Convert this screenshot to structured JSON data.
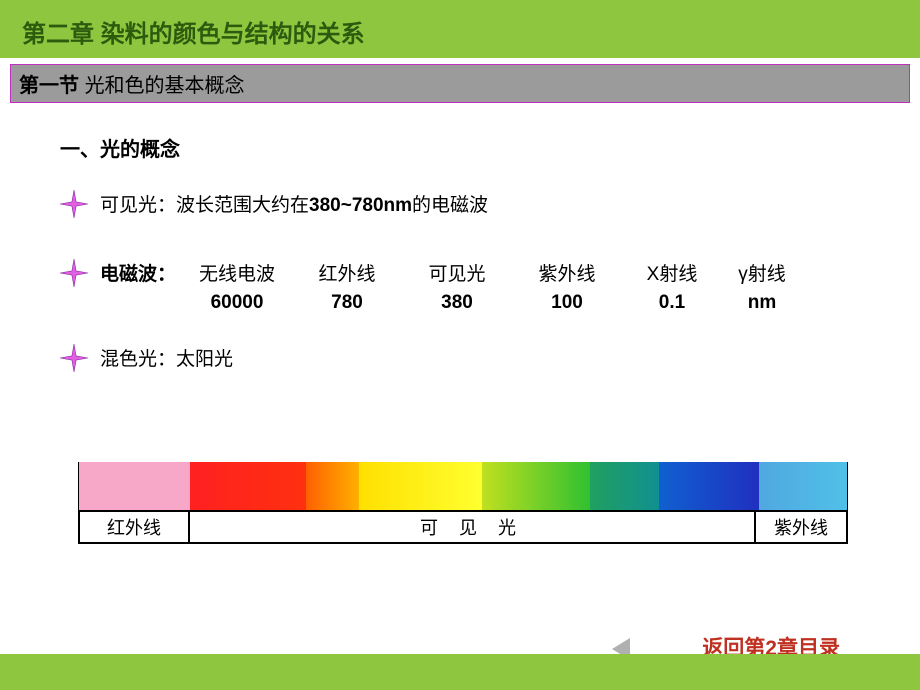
{
  "chapter_title": "第二章  染料的颜色与结构的关系",
  "section": {
    "label": "第一节",
    "title": "光和色的基本概念"
  },
  "sub_heading": "一、光的概念",
  "visible_light": {
    "label": "可见光：",
    "text_a": "波长范围大约在",
    "range": "380~780nm",
    "text_b": "的电磁波"
  },
  "em_wave": {
    "label": "电磁波：",
    "columns": [
      {
        "name": "无线电波",
        "value": "60000"
      },
      {
        "name": "红外线",
        "value": "780"
      },
      {
        "name": "可见光",
        "value": "380"
      },
      {
        "name": "紫外线",
        "value": "100"
      },
      {
        "name": "X射线",
        "value": "0.1"
      },
      {
        "name": "γ射线",
        "value": "nm"
      }
    ]
  },
  "mixed_light": {
    "label": "混色光：",
    "text": "太阳光"
  },
  "spectrum": {
    "labels": {
      "ir": "红外线",
      "visible": "可  见  光",
      "uv": "紫外线"
    },
    "segments": [
      {
        "width_pct": 14.5,
        "bg": "linear-gradient(90deg,#f7a8c8,#f7a8c8)"
      },
      {
        "width_pct": 15,
        "bg": "linear-gradient(90deg,#ff2020,#ff3010)"
      },
      {
        "width_pct": 7,
        "bg": "linear-gradient(90deg,#ff6000,#ffb000)"
      },
      {
        "width_pct": 16,
        "bg": "linear-gradient(90deg,#ffe000,#ffff30)"
      },
      {
        "width_pct": 14,
        "bg": "linear-gradient(90deg,#c0e020,#30c030)"
      },
      {
        "width_pct": 9,
        "bg": "linear-gradient(90deg,#20a060,#109090)"
      },
      {
        "width_pct": 13,
        "bg": "linear-gradient(90deg,#1060d0,#2030c0)"
      },
      {
        "width_pct": 11.5,
        "bg": "linear-gradient(90deg,#50a8e0,#50c0e8)"
      }
    ]
  },
  "return_link": "返回第2章目录",
  "colors": {
    "header_bg": "#8fc640",
    "header_text": "#2e5a0e",
    "section_bg": "#9b9b9b",
    "section_border": "#c030c0",
    "link_color": "#c03020",
    "star_fill": "#e060e0",
    "star_stroke": "#a020a0"
  }
}
